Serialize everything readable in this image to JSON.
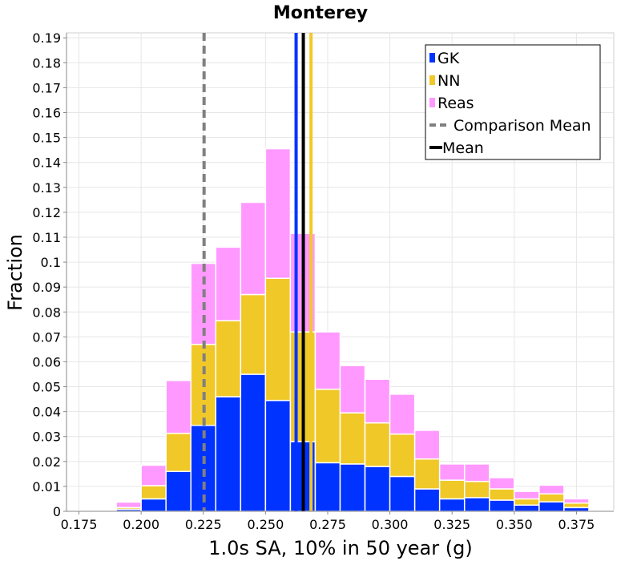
{
  "chart_data": {
    "type": "bar",
    "stacked": true,
    "title": "Monterey",
    "xlabel": "1.0s SA, 10% in 50 year (g)",
    "ylabel": "Fraction",
    "xlim": [
      0.17,
      0.39
    ],
    "ylim": [
      0,
      0.192
    ],
    "bin_width": 0.01,
    "x_ticks": [
      "0.175",
      "0.200",
      "0.225",
      "0.250",
      "0.275",
      "0.300",
      "0.325",
      "0.350",
      "0.375"
    ],
    "y_ticks": [
      "0",
      "0.01",
      "0.02",
      "0.03",
      "0.04",
      "0.05",
      "0.06",
      "0.07",
      "0.08",
      "0.09",
      "0.1",
      "0.11",
      "0.12",
      "0.13",
      "0.14",
      "0.15",
      "0.16",
      "0.17",
      "0.18",
      "0.19"
    ],
    "bin_centers": [
      0.175,
      0.185,
      0.195,
      0.205,
      0.215,
      0.225,
      0.235,
      0.245,
      0.255,
      0.265,
      0.275,
      0.285,
      0.295,
      0.305,
      0.315,
      0.325,
      0.335,
      0.345,
      0.355,
      0.365,
      0.375,
      0.385
    ],
    "series": [
      {
        "name": "GK",
        "color": "#0033ff",
        "values": [
          0,
          0,
          0.0008,
          0.005,
          0.016,
          0.0345,
          0.046,
          0.055,
          0.0445,
          0.028,
          0.0195,
          0.019,
          0.018,
          0.014,
          0.009,
          0.005,
          0.0055,
          0.0045,
          0.0025,
          0.0038,
          0.0015,
          0
        ]
      },
      {
        "name": "NN",
        "color": "#f0c828",
        "values": [
          0,
          0,
          0.0007,
          0.0053,
          0.0153,
          0.0325,
          0.0305,
          0.032,
          0.049,
          0.044,
          0.0295,
          0.0205,
          0.0175,
          0.017,
          0.012,
          0.0075,
          0.0065,
          0.0045,
          0.0025,
          0.0032,
          0.0018,
          0
        ]
      },
      {
        "name": "Reas",
        "color": "#ff99ff",
        "values": [
          0.0003,
          0.0003,
          0.0022,
          0.0082,
          0.0212,
          0.0325,
          0.0295,
          0.037,
          0.052,
          0.0395,
          0.023,
          0.019,
          0.0175,
          0.016,
          0.0115,
          0.0065,
          0.007,
          0.0045,
          0.003,
          0.0035,
          0.0017,
          0.0003
        ]
      }
    ],
    "mean_lines": [
      {
        "name": "Comparison Mean",
        "x": 0.2253,
        "color": "#808080",
        "style": "dashed"
      },
      {
        "name": "Mean",
        "x": 0.2652,
        "color": "#000000",
        "style": "solid"
      },
      {
        "x": 0.2623,
        "color": "#0033ff",
        "style": "solid"
      },
      {
        "x": 0.2683,
        "color": "#f0c828",
        "style": "solid"
      }
    ],
    "grid": true,
    "legend": {
      "position": "top-right",
      "entries": [
        {
          "label": "GK",
          "kind": "box",
          "color": "#0033ff"
        },
        {
          "label": "NN",
          "kind": "box",
          "color": "#f0c828"
        },
        {
          "label": "Reas",
          "kind": "box",
          "color": "#ff99ff"
        },
        {
          "label": "Comparison Mean",
          "kind": "dashed-line",
          "color": "#808080"
        },
        {
          "label": "Mean",
          "kind": "line",
          "color": "#000000"
        }
      ]
    }
  }
}
